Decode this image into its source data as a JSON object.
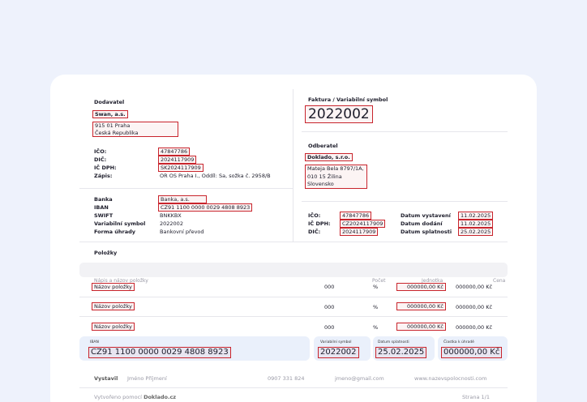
{
  "supplier": {
    "heading": "Dodavatel",
    "name": "Swan, a.s.",
    "address_line1": "915 01 Praha",
    "address_line2": "Česká Republika",
    "ico_label": "IČO:",
    "ico": "47847786",
    "dic_label": "DIČ:",
    "dic": "2024117909",
    "icdph_label": "IČ DPH:",
    "icdph": "SK2024117909",
    "zapis_label": "Zápis:",
    "zapis": "OR OS Praha I., Oddíl: Sa, sožka č. 2958/B"
  },
  "bank": {
    "bank_label": "Banka",
    "bank": "Banka, a.s.",
    "iban_label": "IBAN",
    "iban": "CZ91 1100 0000 0029 4808 8923",
    "swift_label": "SWIFT",
    "swift": "BNKKBX",
    "vs_label": "Variabilní symbol",
    "vs": "2022002",
    "payment_label": "Forma úhrady",
    "payment": "Bankovní převod"
  },
  "invoice": {
    "heading": "Faktura / Variabilní symbol",
    "number": "2022002"
  },
  "customer": {
    "heading": "Odberatel",
    "name": "Doklado, s.r.o.",
    "address_line1": "Mateja Bela 8797/1A,",
    "address_line2": "010 15 Žilina",
    "address_line3": "Slovensko",
    "ico_label": "IČO:",
    "ico": "47847786",
    "icdph_label": "IČ DPH:",
    "icdph": "CZ2024117909",
    "dic_label": "DIČ:",
    "dic": "2024117909"
  },
  "dates": {
    "issued_label": "Datum vystavení",
    "issued": "11.02.2025",
    "delivery_label": "Datum dodání",
    "delivery": "11.02.2025",
    "due_label": "Datum splatnosti",
    "due": "25.02.2025"
  },
  "items": {
    "heading": "Položky",
    "col_name": "Nápis a názov položky",
    "col_count": "Počet",
    "col_unit": "Jednotka",
    "col_price": "Cena",
    "rows": [
      {
        "name": "Názov položky",
        "count": "000",
        "unit": "%",
        "unit_price": "000000,00 Kč",
        "price": "000000,00 Kč"
      },
      {
        "name": "Názov položky",
        "count": "000",
        "unit": "%",
        "unit_price": "000000,00 Kč",
        "price": "000000,00 Kč"
      },
      {
        "name": "Názov položky",
        "count": "000",
        "unit": "%",
        "unit_price": "000000,00 Kč",
        "price": "000000,00 Kč"
      }
    ]
  },
  "summary": {
    "iban_label": "IBAN",
    "iban": "CZ91 1100 0000 0029 4808 8923",
    "vs_label": "Variabilní symbol",
    "vs": "2022002",
    "due_label": "Datum splatnosti",
    "due": "25.02.2025",
    "amount_label": "Čiastka k úhradě",
    "amount": "000000,00 Kč"
  },
  "footer": {
    "issued_by_label": "Vystavil",
    "person": "Jméno Příjmení",
    "phone": "0907 331 824",
    "email": "jmeno@gmail.com",
    "web": "www.nazevspolocnosti.com",
    "created_prefix": "Vytvořeno pomocí",
    "created_brand": "Doklado.cz",
    "page": "Strana 1/1"
  },
  "colors": {
    "background": "#eef2fc",
    "highlight": "#c8242c",
    "summary_bg": "#eaf0fb"
  }
}
